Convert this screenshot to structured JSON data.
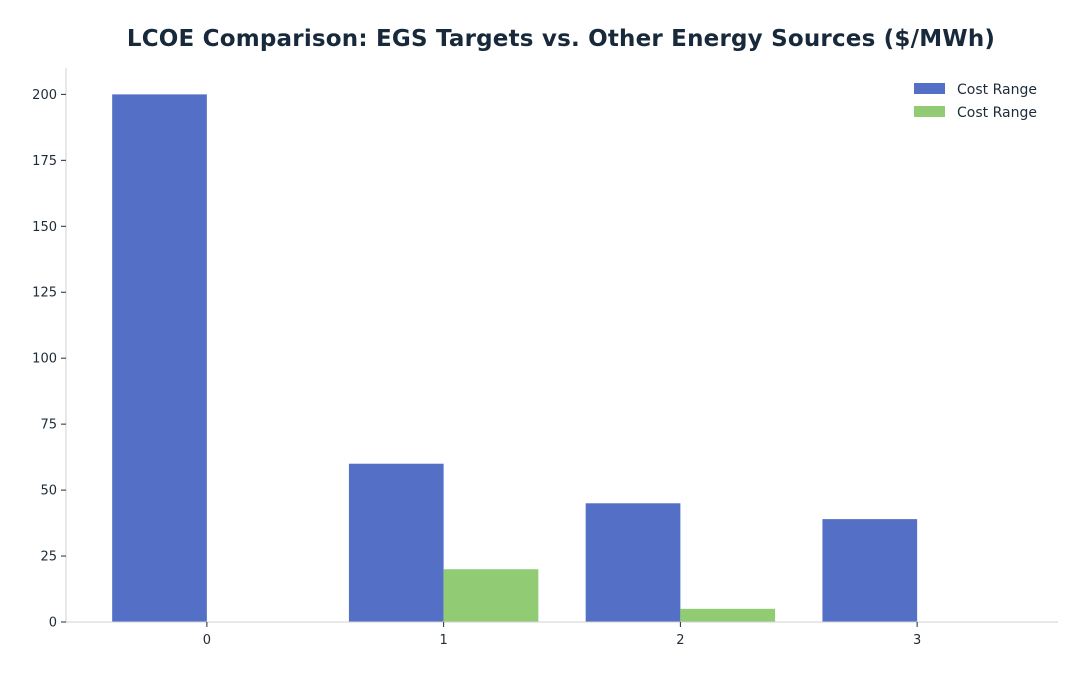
{
  "chart_data": {
    "type": "bar",
    "title": "LCOE Comparison: EGS Targets vs. Other Energy Sources ($/MWh)",
    "xlabel": "",
    "ylabel": "",
    "categories": [
      "0",
      "1",
      "2",
      "3"
    ],
    "series": [
      {
        "name": "Cost Range",
        "values": [
          200,
          60,
          45,
          39
        ],
        "color": "#5470c6"
      },
      {
        "name": "Cost Range",
        "values": [
          0,
          20,
          5,
          0
        ],
        "color": "#91cc75"
      }
    ],
    "ylim": [
      0,
      210
    ],
    "yticks": [
      "0",
      "25",
      "50",
      "75",
      "100",
      "125",
      "150",
      "175",
      "200"
    ],
    "grid": false,
    "legend_position": "top-right"
  }
}
